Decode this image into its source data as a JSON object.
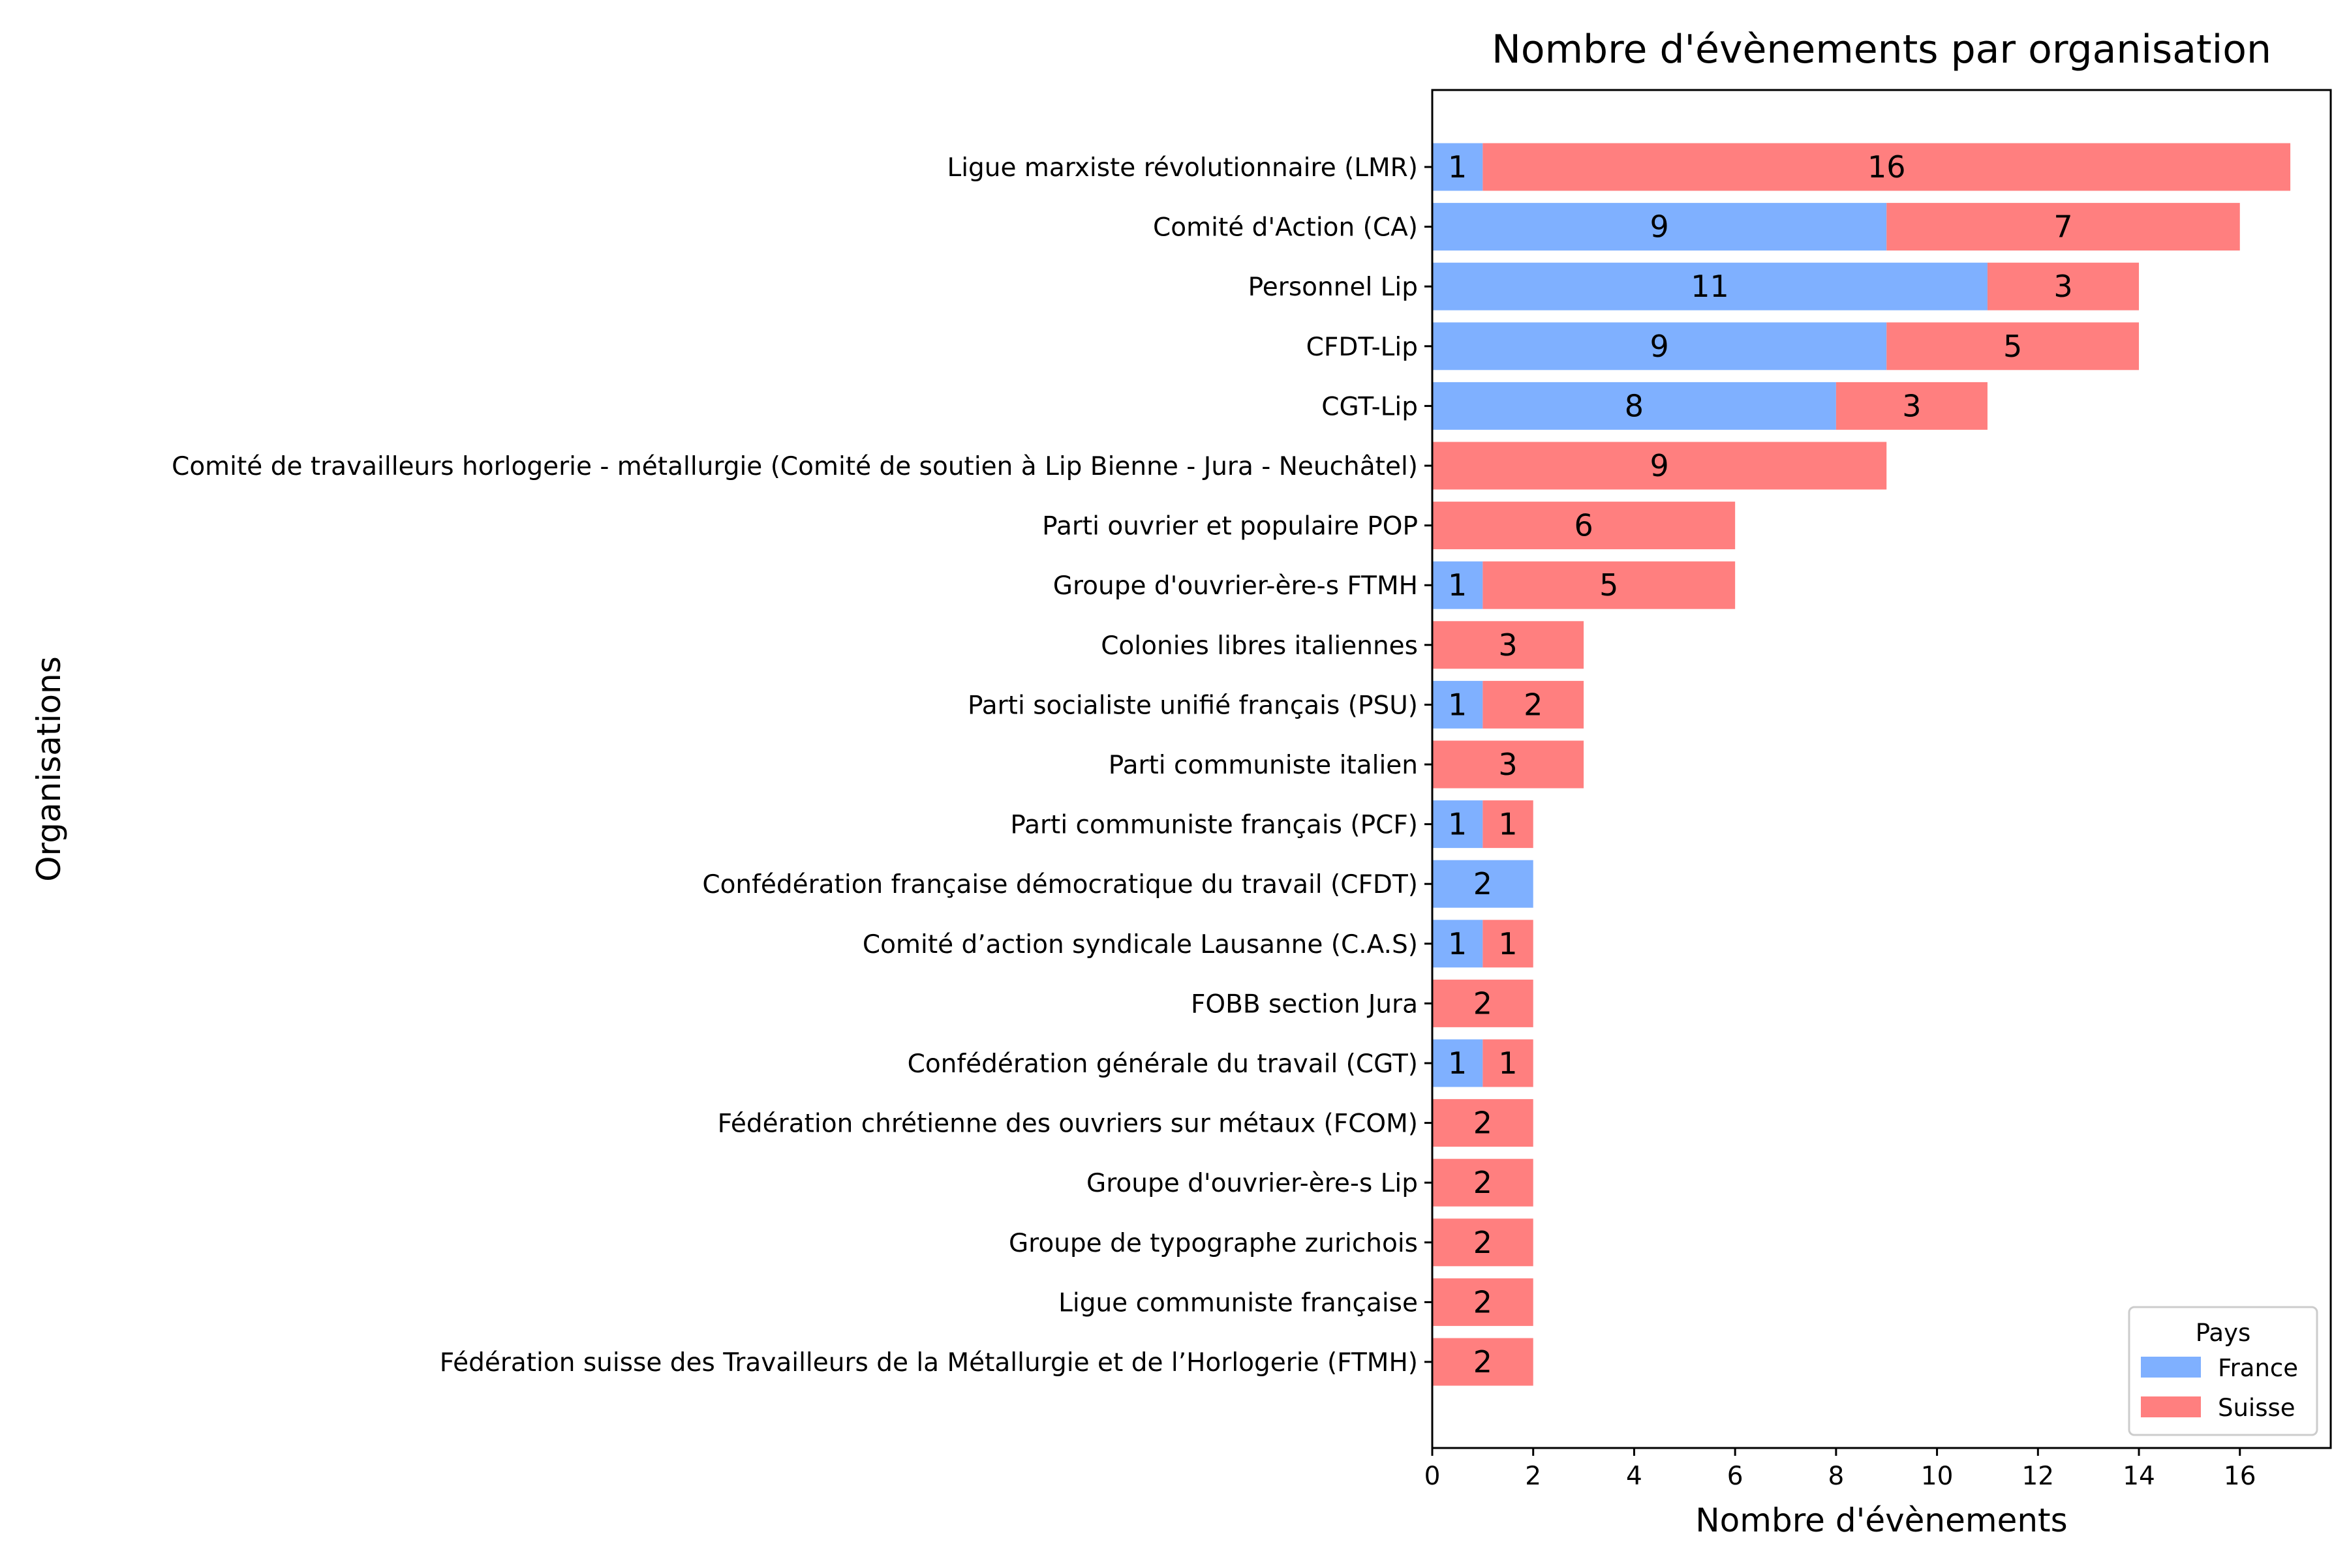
{
  "chart_data": {
    "type": "bar",
    "orientation": "horizontal",
    "stacked": true,
    "title": "Nombre d'évènements par organisation",
    "xlabel": "Nombre d'évènements",
    "ylabel": "Organisations",
    "xlim": [
      0,
      17.8
    ],
    "xticks": [
      "0",
      "2",
      "4",
      "6",
      "8",
      "10",
      "12",
      "14",
      "16"
    ],
    "grid": false,
    "legend": {
      "title": "Pays",
      "placement": "bottom-right"
    },
    "categories": [
      "Ligue marxiste révolutionnaire (LMR)",
      "Comité d'Action (CA)",
      "Personnel Lip",
      "CFDT-Lip",
      "CGT-Lip",
      "Comité de travailleurs horlogerie - métallurgie (Comité de soutien à Lip Bienne - Jura - Neuchâtel)",
      "Parti ouvrier et populaire POP",
      "Groupe d'ouvrier-ère-s FTMH",
      "Colonies libres italiennes",
      "Parti socialiste unifié français (PSU)",
      "Parti communiste italien",
      "Parti communiste français (PCF)",
      "Confédération française démocratique du travail (CFDT)",
      "Comité d’action syndicale Lausanne (C.A.S)",
      "FOBB section Jura",
      "Confédération générale du travail (CGT)",
      "Fédération chrétienne des ouvriers sur métaux (FCOM)",
      "Groupe d'ouvrier-ère-s Lip",
      "Groupe de typographe zurichois",
      "Ligue communiste française",
      "Fédération suisse des Travailleurs de la Métallurgie et de l’Horlogerie (FTMH)"
    ],
    "series": [
      {
        "name": "France",
        "color": "#7FB0FF",
        "values": [
          1,
          9,
          11,
          9,
          8,
          0,
          0,
          1,
          0,
          1,
          0,
          1,
          2,
          1,
          0,
          1,
          0,
          0,
          0,
          0,
          0
        ]
      },
      {
        "name": "Suisse",
        "color": "#FF7F7F",
        "values": [
          16,
          7,
          3,
          5,
          3,
          9,
          6,
          5,
          3,
          2,
          3,
          1,
          0,
          1,
          2,
          1,
          2,
          2,
          2,
          2,
          2
        ]
      }
    ]
  }
}
